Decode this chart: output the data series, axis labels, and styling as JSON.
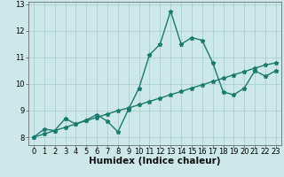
{
  "xlabel": "Humidex (Indice chaleur)",
  "bg_color": "#cce8e8",
  "line_color": "#1a7a6e",
  "grid_color": "#aed0d0",
  "xlim": [
    -0.5,
    23.5
  ],
  "ylim": [
    7.7,
    13.1
  ],
  "xticks": [
    0,
    1,
    2,
    3,
    4,
    5,
    6,
    7,
    8,
    9,
    10,
    11,
    12,
    13,
    14,
    15,
    16,
    17,
    18,
    19,
    20,
    21,
    22,
    23
  ],
  "yticks": [
    8,
    9,
    10,
    11,
    12,
    13
  ],
  "series1_x": [
    0,
    1,
    2,
    3,
    4,
    5,
    6,
    7,
    8,
    9,
    10,
    11,
    12,
    13,
    14,
    15,
    16,
    17,
    18,
    19,
    20,
    21,
    22,
    23
  ],
  "series1_y": [
    8.0,
    8.3,
    8.25,
    8.7,
    8.5,
    8.65,
    8.85,
    8.6,
    8.2,
    9.05,
    9.85,
    11.1,
    11.5,
    12.75,
    11.5,
    11.75,
    11.65,
    10.8,
    9.7,
    9.6,
    9.85,
    10.5,
    10.3,
    10.5
  ],
  "series2_x": [
    0,
    1,
    2,
    3,
    4,
    5,
    6,
    7,
    8,
    9,
    10,
    11,
    12,
    13,
    14,
    15,
    16,
    17,
    18,
    19,
    20,
    21,
    22,
    23
  ],
  "series2_y": [
    8.0,
    8.12,
    8.25,
    8.37,
    8.5,
    8.62,
    8.75,
    8.87,
    9.0,
    9.1,
    9.22,
    9.35,
    9.47,
    9.6,
    9.72,
    9.85,
    9.97,
    10.1,
    10.22,
    10.35,
    10.47,
    10.6,
    10.72,
    10.8
  ],
  "marker": "*",
  "markersize": 3.5,
  "linewidth": 1.0,
  "xlabel_fontsize": 7.5,
  "tick_fontsize": 6.0
}
